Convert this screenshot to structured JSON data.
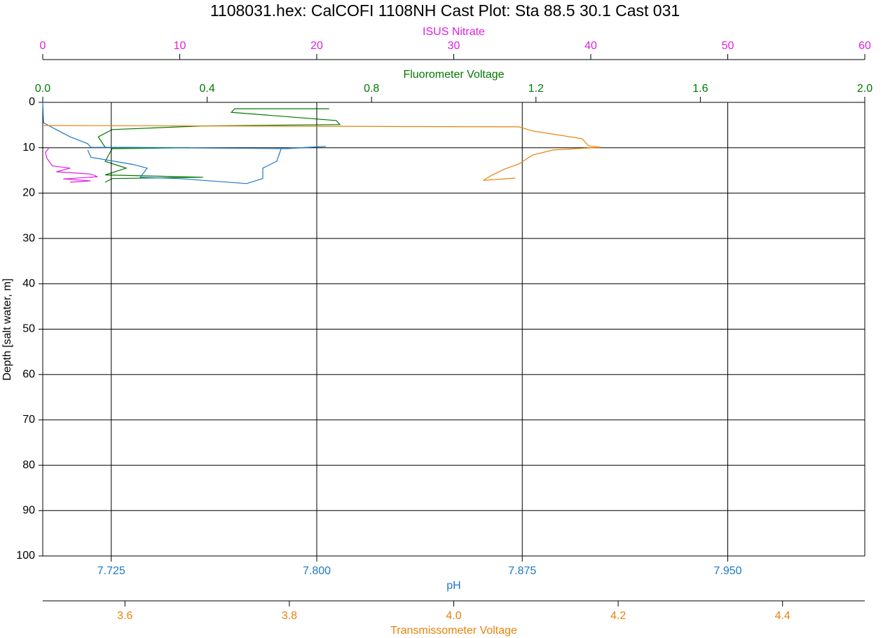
{
  "chart_data": {
    "type": "line",
    "title": "1108031.hex: CalCOFI 1108NH Cast Plot: Sta 88.5 30.1 Cast 031",
    "y_label": "Depth [salt water, m]",
    "ylim": [
      0,
      100
    ],
    "y_inverted": true,
    "yticks": [
      0,
      10,
      20,
      30,
      40,
      50,
      60,
      70,
      80,
      90,
      100
    ],
    "series": [
      {
        "name": "Fluorometer Voltage",
        "color": "#007800",
        "position": "top",
        "xlim": [
          0,
          2
        ],
        "xticks": [
          {
            "value": 0,
            "label": "0.0"
          },
          0.4,
          0.8,
          1.2,
          1.6,
          {
            "value": 2,
            "label": "2.0"
          }
        ],
        "depth": [
          1.4,
          1.4,
          2.2,
          4.0,
          4.9,
          5.2,
          6.0,
          7.6,
          9.9,
          10.0,
          10.2,
          13.0,
          14.5,
          16.0,
          16.5,
          16.8,
          17.6
        ],
        "values": [
          0.697,
          0.467,
          0.459,
          0.714,
          0.723,
          0.39,
          0.169,
          0.135,
          0.152,
          0.356,
          0.169,
          0.152,
          0.203,
          0.152,
          0.39,
          0.169,
          0.152
        ]
      },
      {
        "name": "ISUS Nitrate",
        "color": "#e020e0",
        "position": "top",
        "xlim": [
          0,
          60
        ],
        "xticks": [
          0,
          10,
          20,
          30,
          40,
          50,
          60
        ],
        "depth": [
          10.0,
          11.0,
          12.3,
          14.0,
          14.5,
          15.3,
          15.8,
          16.4,
          16.9,
          17.3,
          17.6
        ],
        "values": [
          0.46,
          0.2,
          0.3,
          0.7,
          2.0,
          1.0,
          3.5,
          4.0,
          1.5,
          3.5,
          2.0
        ]
      },
      {
        "name": "pH",
        "color": "#1e78c8",
        "position": "bottom",
        "grid": true,
        "xlim": [
          7.7,
          8.0
        ],
        "xticks": [
          {
            "value": 7.725,
            "label": "7.725"
          },
          {
            "value": 7.8,
            "label": "7.800"
          },
          {
            "value": 7.875,
            "label": "7.875"
          },
          {
            "value": 7.95,
            "label": "7.950"
          }
        ],
        "depth": [
          0,
          4.5,
          6.0,
          7.6,
          9.1,
          9.9,
          10.2,
          9.7,
          10.2,
          13.0,
          14.5,
          16.8,
          17.9,
          16.8,
          16.5,
          14.5,
          13.7,
          12.1,
          10.5
        ],
        "values": [
          7.7,
          7.7003,
          7.7049,
          7.71,
          7.7164,
          7.7176,
          7.7893,
          7.8033,
          7.787,
          7.7854,
          7.7803,
          7.7803,
          7.7744,
          7.7496,
          7.7356,
          7.7381,
          7.733,
          7.7176,
          7.7164
        ]
      },
      {
        "name": "Transmissometer Voltage",
        "color": "#e8820a",
        "position": "bottom",
        "xlim": [
          3.5,
          4.5
        ],
        "xticks": [
          3.6,
          3.8,
          {
            "value": 4.0,
            "label": "4.0"
          },
          4.2,
          4.4
        ],
        "depth": [
          5.1,
          5.4,
          6.3,
          8.0,
          9.6,
          9.9,
          10.5,
          11.6,
          13.6,
          14.7,
          16.2,
          17.2,
          16.7
        ],
        "values": [
          3.5,
          4.079,
          4.096,
          4.156,
          4.164,
          4.179,
          4.121,
          4.096,
          4.079,
          4.062,
          4.045,
          4.036,
          4.075
        ]
      }
    ]
  }
}
